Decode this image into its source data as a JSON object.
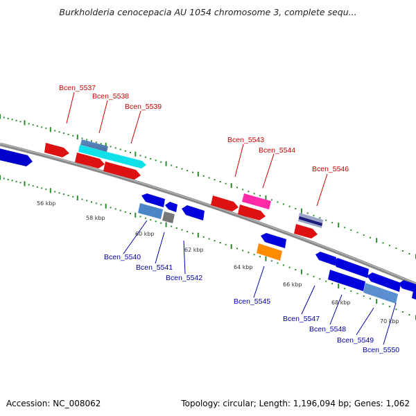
{
  "title": "Burkholderia cenocepacia AU 1054 chromosome 3, complete sequ...",
  "footer": {
    "accession": "Accession: NC_008062",
    "summary": "Topology: circular; Length: 1,196,094 bp; Genes: 1,062"
  },
  "colors": {
    "label_top": "#cc0000",
    "label_bottom": "#0000aa",
    "backbone": "#888888",
    "ticks": "#2a8a2a"
  },
  "genes_top": [
    {
      "label": "Bcen_5537",
      "color": "#dd0000"
    },
    {
      "label": "Bcen_5538",
      "color": "#00e5e5"
    },
    {
      "label": "Bcen_5539",
      "color": "#dd0000"
    },
    {
      "label": "Bcen_5543",
      "color": "#dd0000"
    },
    {
      "label": "Bcen_5544",
      "color": "#ff2aa8"
    },
    {
      "label": "Bcen_5546",
      "color": "#dd0000"
    }
  ],
  "genes_bottom": [
    {
      "label": "Bcen_5540",
      "color": "#4a86c8"
    },
    {
      "label": "Bcen_5541",
      "color": "#777777"
    },
    {
      "label": "Bcen_5542",
      "color": "#0000ee"
    },
    {
      "label": "Bcen_5545",
      "color": "#ff8800"
    },
    {
      "label": "Bcen_5547",
      "color": "#0000ee"
    },
    {
      "label": "Bcen_5548",
      "color": "#0000ee"
    },
    {
      "label": "Bcen_5549",
      "color": "#0000ee"
    },
    {
      "label": "Bcen_5550",
      "color": "#0000ee"
    }
  ],
  "scale_labels": [
    "56 kbp",
    "58 kbp",
    "60 kbp",
    "62 kbp",
    "64 kbp",
    "66 kbp",
    "68 kbp",
    "70 kbp"
  ]
}
